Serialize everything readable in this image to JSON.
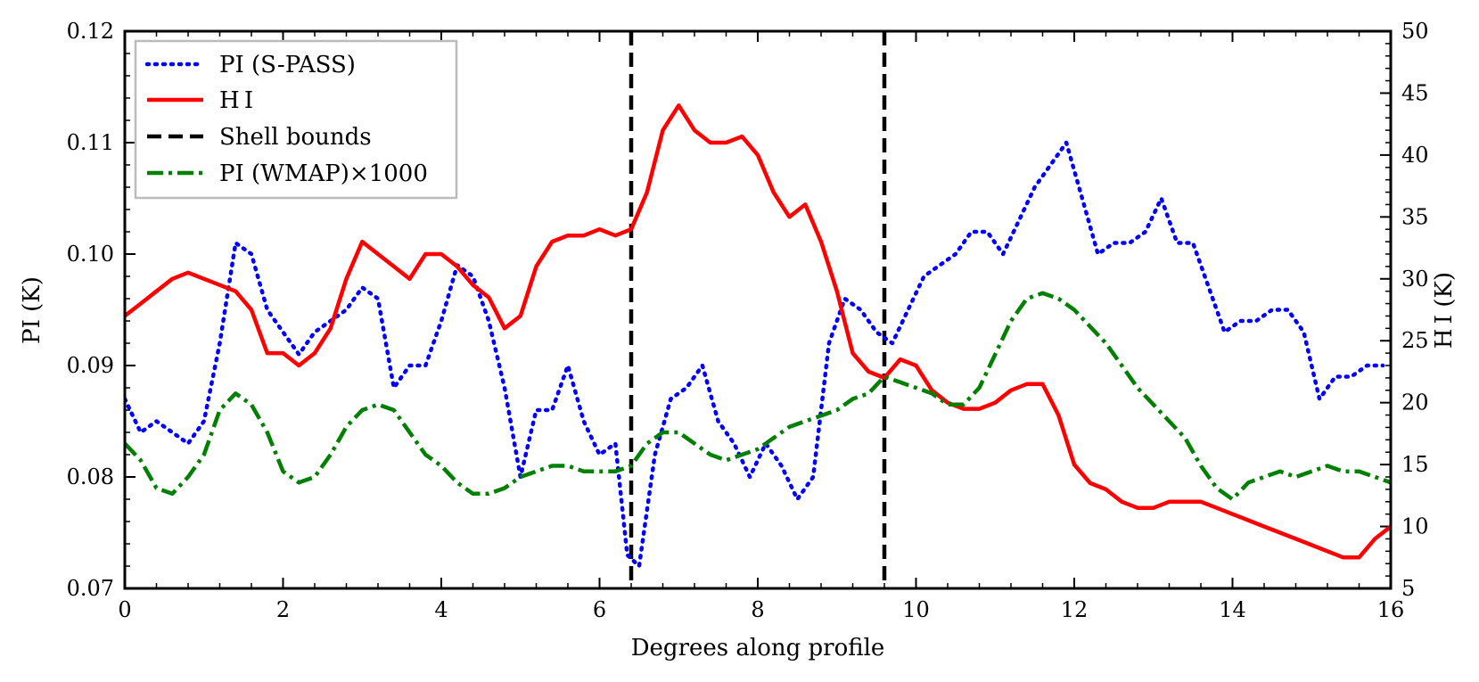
{
  "chart_data": {
    "type": "line",
    "xlabel": "Degrees along profile",
    "ylabel_left": "PI (K)",
    "ylabel_right": "H I (K)",
    "xlim": [
      0,
      16
    ],
    "ylim_left": [
      0.07,
      0.12
    ],
    "ylim_right": [
      5,
      50
    ],
    "x_ticks": [
      0,
      2,
      4,
      6,
      8,
      10,
      12,
      14,
      16
    ],
    "y_ticks_left": [
      0.07,
      0.08,
      0.09,
      0.1,
      0.11,
      0.12
    ],
    "y_tick_labels_left": [
      "0.07",
      "0.08",
      "0.09",
      "0.10",
      "0.11",
      "0.12"
    ],
    "y_ticks_right": [
      5,
      10,
      15,
      20,
      25,
      30,
      35,
      40,
      45,
      50
    ],
    "legend_position": "top-left",
    "legend": [
      "PI (S-PASS)",
      "H I",
      "Shell bounds",
      "PI (WMAP)×1000"
    ],
    "shell_bounds": [
      6.4,
      9.6
    ],
    "series": [
      {
        "name": "PI (S-PASS)",
        "axis": "left",
        "color": "#0000ff",
        "style": "dotted",
        "x": [
          0,
          0.2,
          0.4,
          0.6,
          0.8,
          1.0,
          1.2,
          1.4,
          1.6,
          1.8,
          2.0,
          2.2,
          2.4,
          2.6,
          2.8,
          3.0,
          3.2,
          3.4,
          3.6,
          3.8,
          4.0,
          4.2,
          4.4,
          4.6,
          4.8,
          5.0,
          5.2,
          5.4,
          5.6,
          5.8,
          6.0,
          6.2,
          6.35,
          6.5,
          6.7,
          6.9,
          7.1,
          7.3,
          7.5,
          7.7,
          7.9,
          8.1,
          8.3,
          8.5,
          8.7,
          8.9,
          9.1,
          9.3,
          9.5,
          9.7,
          9.9,
          10.1,
          10.3,
          10.5,
          10.7,
          10.9,
          11.1,
          11.3,
          11.5,
          11.7,
          11.9,
          12.1,
          12.3,
          12.5,
          12.7,
          12.9,
          13.1,
          13.3,
          13.5,
          13.7,
          13.9,
          14.1,
          14.3,
          14.5,
          14.7,
          14.9,
          15.1,
          15.3,
          15.5,
          15.7,
          15.9
        ],
        "values": [
          0.087,
          0.084,
          0.085,
          0.084,
          0.083,
          0.085,
          0.092,
          0.101,
          0.1,
          0.095,
          0.093,
          0.091,
          0.093,
          0.094,
          0.095,
          0.097,
          0.096,
          0.088,
          0.09,
          0.09,
          0.094,
          0.099,
          0.098,
          0.094,
          0.088,
          0.08,
          0.086,
          0.086,
          0.09,
          0.085,
          0.082,
          0.083,
          0.073,
          0.072,
          0.082,
          0.087,
          0.088,
          0.09,
          0.085,
          0.083,
          0.08,
          0.083,
          0.081,
          0.078,
          0.08,
          0.092,
          0.096,
          0.095,
          0.093,
          0.092,
          0.095,
          0.098,
          0.099,
          0.1,
          0.102,
          0.102,
          0.1,
          0.103,
          0.106,
          0.108,
          0.11,
          0.105,
          0.1,
          0.101,
          0.101,
          0.102,
          0.105,
          0.101,
          0.101,
          0.097,
          0.093,
          0.094,
          0.094,
          0.095,
          0.095,
          0.093,
          0.087,
          0.089,
          0.089,
          0.09,
          0.09
        ]
      },
      {
        "name": "H I",
        "axis": "right",
        "color": "#ff0000",
        "style": "solid",
        "x": [
          0,
          0.2,
          0.4,
          0.6,
          0.8,
          1.0,
          1.2,
          1.4,
          1.6,
          1.8,
          2.0,
          2.2,
          2.4,
          2.6,
          2.8,
          3.0,
          3.2,
          3.4,
          3.6,
          3.8,
          4.0,
          4.2,
          4.4,
          4.6,
          4.8,
          5.0,
          5.2,
          5.4,
          5.6,
          5.8,
          6.0,
          6.2,
          6.4,
          6.6,
          6.8,
          7.0,
          7.2,
          7.4,
          7.6,
          7.8,
          8.0,
          8.2,
          8.4,
          8.6,
          8.8,
          9.0,
          9.2,
          9.4,
          9.6,
          9.8,
          10.0,
          10.2,
          10.4,
          10.6,
          10.8,
          11.0,
          11.2,
          11.4,
          11.6,
          11.8,
          12.0,
          12.2,
          12.4,
          12.6,
          12.8,
          13.0,
          13.2,
          13.4,
          13.6,
          13.8,
          14.0,
          14.2,
          14.4,
          14.6,
          14.8,
          15.0,
          15.2,
          15.4,
          15.6,
          15.8,
          16.0
        ],
        "values": [
          27,
          28,
          29,
          30,
          30.5,
          30,
          29.5,
          29,
          27.5,
          24,
          24,
          23,
          24,
          26,
          30,
          33,
          32,
          31,
          30,
          32,
          32,
          31,
          29.5,
          28.5,
          26,
          27,
          31,
          33,
          33.5,
          33.5,
          34,
          33.5,
          34,
          37,
          42,
          44,
          42,
          41,
          41,
          41.5,
          40,
          37,
          35,
          36,
          33,
          29,
          24,
          22.5,
          22,
          23.5,
          23,
          21,
          20,
          19.5,
          19.5,
          20,
          21,
          21.5,
          21.5,
          19,
          15,
          13.5,
          13,
          12,
          11.5,
          11.5,
          12,
          12,
          12,
          11.5,
          11,
          10.5,
          10,
          9.5,
          9,
          8.5,
          8,
          7.5,
          7.5,
          9,
          10
        ]
      },
      {
        "name": "PI (WMAP)×1000",
        "axis": "left",
        "color": "#008000",
        "style": "dashdot",
        "x": [
          0,
          0.2,
          0.4,
          0.6,
          0.8,
          1.0,
          1.2,
          1.4,
          1.6,
          1.8,
          2.0,
          2.2,
          2.4,
          2.6,
          2.8,
          3.0,
          3.2,
          3.4,
          3.6,
          3.8,
          4.0,
          4.2,
          4.4,
          4.6,
          4.8,
          5.0,
          5.2,
          5.4,
          5.6,
          5.8,
          6.0,
          6.2,
          6.4,
          6.6,
          6.8,
          7.0,
          7.2,
          7.4,
          7.6,
          7.8,
          8.0,
          8.2,
          8.4,
          8.6,
          8.8,
          9.0,
          9.2,
          9.4,
          9.6,
          9.8,
          10.0,
          10.2,
          10.4,
          10.6,
          10.8,
          11.0,
          11.2,
          11.4,
          11.6,
          11.8,
          12.0,
          12.2,
          12.4,
          12.6,
          12.8,
          13.0,
          13.2,
          13.4,
          13.6,
          13.8,
          14.0,
          14.2,
          14.4,
          14.6,
          14.8,
          15.0,
          15.2,
          15.4,
          15.6,
          15.8,
          16.0
        ],
        "values": [
          0.083,
          0.0815,
          0.079,
          0.0785,
          0.08,
          0.082,
          0.086,
          0.0875,
          0.0865,
          0.084,
          0.0805,
          0.0795,
          0.08,
          0.082,
          0.0845,
          0.086,
          0.0865,
          0.086,
          0.084,
          0.082,
          0.081,
          0.0795,
          0.0785,
          0.0785,
          0.079,
          0.08,
          0.0805,
          0.081,
          0.081,
          0.0805,
          0.0805,
          0.0805,
          0.081,
          0.083,
          0.084,
          0.084,
          0.083,
          0.082,
          0.0815,
          0.082,
          0.0825,
          0.0835,
          0.0845,
          0.085,
          0.0855,
          0.086,
          0.087,
          0.0875,
          0.089,
          0.0885,
          0.088,
          0.0875,
          0.0865,
          0.0865,
          0.088,
          0.091,
          0.094,
          0.096,
          0.0965,
          0.096,
          0.095,
          0.0935,
          0.092,
          0.09,
          0.088,
          0.0865,
          0.085,
          0.0835,
          0.081,
          0.079,
          0.078,
          0.0795,
          0.08,
          0.0805,
          0.08,
          0.0805,
          0.081,
          0.0805,
          0.0805,
          0.08,
          0.0795
        ]
      }
    ]
  }
}
